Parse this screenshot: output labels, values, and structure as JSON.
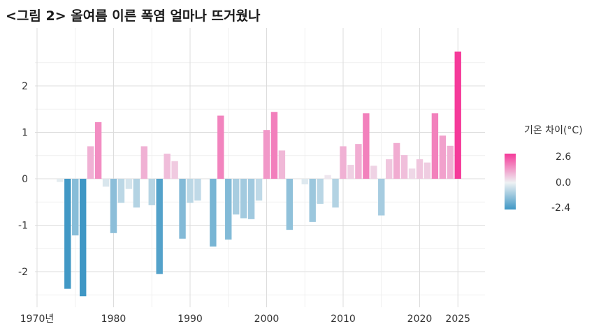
{
  "title": "<그림 2> 올여름 이른 폭염 얼마나 뜨거웠나",
  "chart_data": {
    "type": "bar",
    "title": "<그림 2> 올여름 이른 폭염 얼마나 뜨거웠나",
    "xlabel": "",
    "ylabel": "",
    "x_tick_labels": [
      "1970년",
      "1980",
      "1990",
      "2000",
      "2010",
      "2020",
      "2025"
    ],
    "x_tick_years": [
      1970,
      1980,
      1990,
      2000,
      2010,
      2020,
      2025
    ],
    "y_ticks": [
      -2,
      -1,
      0,
      1,
      2
    ],
    "ylim": [
      -2.6,
      3.0
    ],
    "grid": true,
    "legend_position": "right",
    "legend": {
      "title": "기온 차이(°C)",
      "max_label": "2.6",
      "mid_label": "0.0",
      "min_label": "-2.4",
      "max": 2.6,
      "min": -2.4
    },
    "colors": {
      "positive": "#f53a9a",
      "neutral": "#eef1f3",
      "negative": "#3f97c5"
    },
    "years": [
      1973,
      1974,
      1975,
      1976,
      1977,
      1978,
      1979,
      1980,
      1981,
      1982,
      1983,
      1984,
      1985,
      1986,
      1987,
      1988,
      1989,
      1990,
      1991,
      1992,
      1993,
      1994,
      1995,
      1996,
      1997,
      1998,
      1999,
      2000,
      2001,
      2002,
      2003,
      2004,
      2005,
      2006,
      2007,
      2008,
      2009,
      2010,
      2011,
      2012,
      2013,
      2014,
      2015,
      2016,
      2017,
      2018,
      2019,
      2020,
      2021,
      2022,
      2023,
      2024,
      2025
    ],
    "values": [
      -0.07,
      -2.37,
      -1.22,
      -2.53,
      0.7,
      1.22,
      -0.17,
      -1.17,
      -0.52,
      -0.22,
      -0.62,
      0.7,
      -0.57,
      -2.05,
      0.54,
      0.38,
      -1.29,
      -0.52,
      -0.47,
      0.0,
      -1.46,
      1.36,
      -1.31,
      -0.77,
      -0.85,
      -0.87,
      -0.47,
      1.05,
      1.44,
      0.61,
      -1.1,
      0.0,
      -0.12,
      -0.93,
      -0.54,
      0.08,
      -0.62,
      0.7,
      0.3,
      0.75,
      1.41,
      0.28,
      -0.79,
      0.42,
      0.77,
      0.51,
      0.22,
      0.42,
      0.35,
      1.41,
      0.93,
      0.71,
      2.74
    ]
  }
}
